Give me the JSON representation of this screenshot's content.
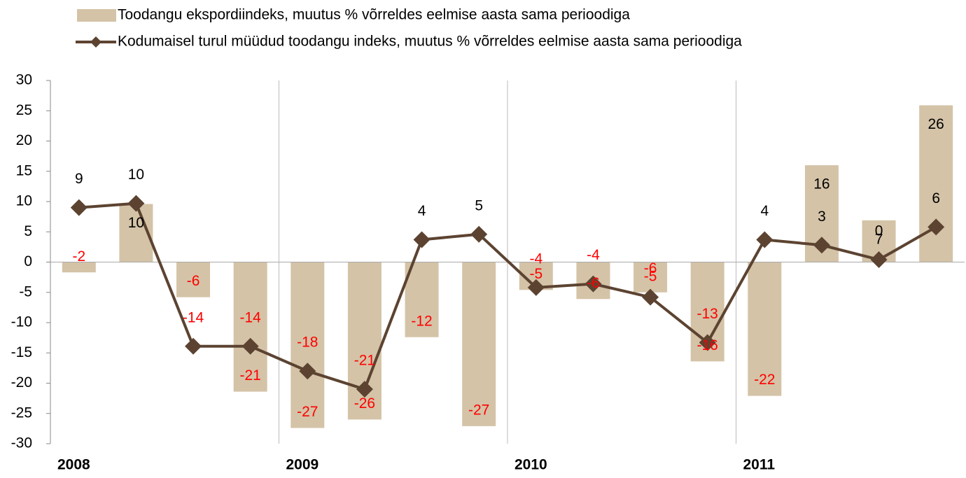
{
  "chart_data": {
    "type": "bar-line",
    "categories": [
      "2008",
      null,
      null,
      null,
      "2009",
      null,
      null,
      null,
      "2010",
      null,
      null,
      null,
      "2011",
      null,
      null,
      null
    ],
    "series": [
      {
        "name": "Toodangu ekspordiindeks, muutus % võrreldes eelmise aasta sama perioodiga",
        "type": "bar",
        "color": "#d4c3a7",
        "values": [
          -1.7,
          9.6,
          -5.8,
          -21.4,
          -27.4,
          -26.0,
          -12.4,
          -27.1,
          -4.6,
          -6.1,
          -5.0,
          -16.4,
          -22.1,
          16.0,
          6.9,
          25.9
        ],
        "value_labels": [
          "-2",
          "10",
          "-6",
          "-21",
          "-27",
          "-26",
          "-12",
          "-27",
          "-5",
          "-6",
          "-5",
          "-16",
          "-22",
          "16",
          "7",
          "26"
        ]
      },
      {
        "name": "Kodumaisel turul müüdud toodangu indeks, muutus % võrreldes eelmise aasta sama perioodiga",
        "type": "line",
        "color": "#5c4331",
        "values": [
          9.0,
          9.7,
          -13.9,
          -13.9,
          -18.0,
          -21.0,
          3.7,
          4.6,
          -4.2,
          -3.6,
          -5.8,
          -13.3,
          3.7,
          2.8,
          0.4,
          5.8
        ],
        "value_labels": [
          "9",
          "10",
          "-14",
          "-14",
          "-18",
          "-21",
          "4",
          "5",
          "-4",
          "-4",
          "-6",
          "-13",
          "4",
          "3",
          "0",
          "6"
        ]
      }
    ],
    "ylim": [
      -30,
      30
    ],
    "yticks": [
      -30,
      -25,
      -20,
      -15,
      -10,
      -5,
      0,
      5,
      10,
      15,
      20,
      25,
      30
    ]
  }
}
